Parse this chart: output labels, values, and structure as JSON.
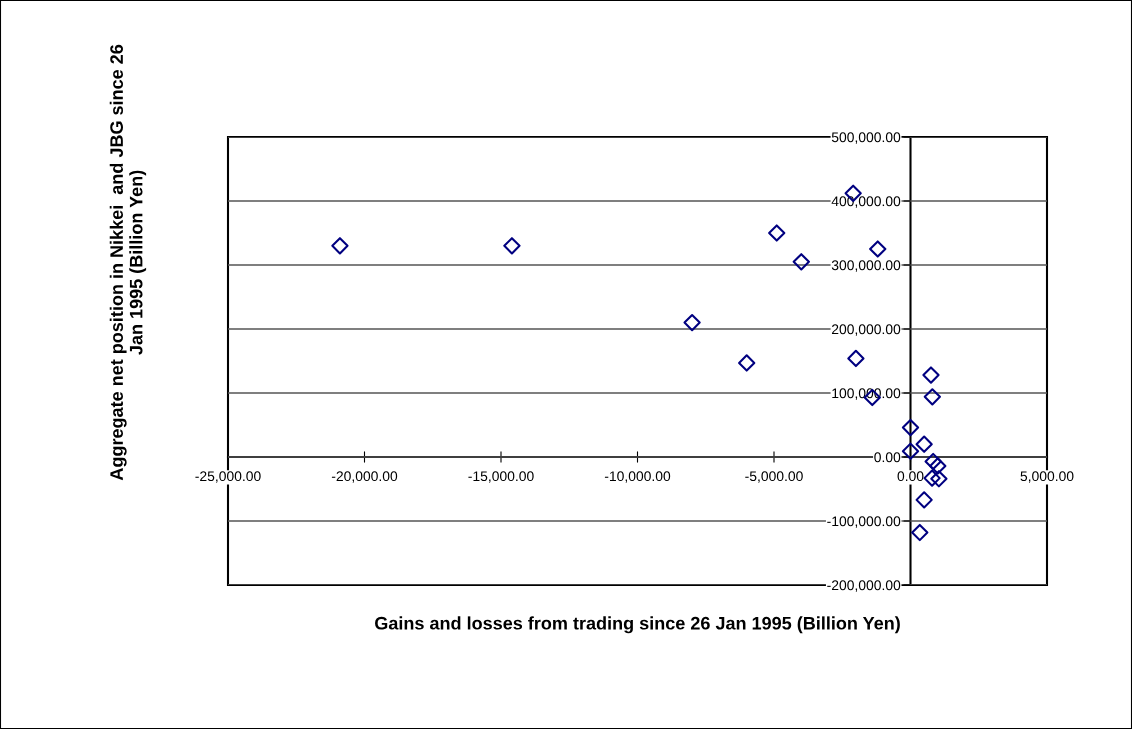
{
  "chart_data": {
    "type": "scatter",
    "xlabel": "Gains and losses from trading since 26 Jan 1995 (Billion Yen)",
    "ylabel": "Aggregate net position in Nikkei  and JBG since 26\nJan 1995 (Billion Yen)",
    "x": [
      -20900,
      -14600,
      -8000,
      -6000,
      -4900,
      -4000,
      -2100,
      -1200,
      -2000,
      -1400,
      750,
      800,
      0,
      0,
      500,
      830,
      1000,
      790,
      1040,
      500,
      340
    ],
    "series": [
      {
        "color": "#000080",
        "values": [
          330000,
          330000,
          210000,
          147000,
          350000,
          305000,
          412000,
          325000,
          154000,
          93000,
          128000,
          94000,
          46000,
          9000,
          20000,
          -7000,
          -14000,
          -33000,
          -34000,
          -67000,
          -118000
        ]
      }
    ],
    "marker": "diamond",
    "xlim": [
      -25000,
      5000
    ],
    "ylim": [
      -200000,
      500000
    ],
    "xticks": [
      {
        "value": -25000,
        "label": "-25,000.00"
      },
      {
        "value": -20000,
        "label": "-20,000.00"
      },
      {
        "value": -15000,
        "label": "-15,000.00"
      },
      {
        "value": -10000,
        "label": "-10,000.00"
      },
      {
        "value": -5000,
        "label": "-5,000.00"
      },
      {
        "value": 0,
        "label": "0.00"
      },
      {
        "value": 5000,
        "label": "5,000.00"
      }
    ],
    "yticks": [
      {
        "value": -200000,
        "label": "-200,000.00"
      },
      {
        "value": -100000,
        "label": "-100,000.00"
      },
      {
        "value": 0,
        "label": "0.00"
      },
      {
        "value": 100000,
        "label": "100,000.00"
      },
      {
        "value": 200000,
        "label": "200,000.00"
      },
      {
        "value": 300000,
        "label": "300,000.00"
      },
      {
        "value": 400000,
        "label": "400,000.00"
      },
      {
        "value": 500000,
        "label": "500,000.00"
      }
    ],
    "grid": "y"
  }
}
